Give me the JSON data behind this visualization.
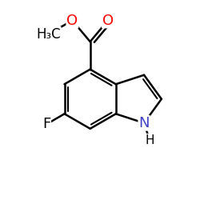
{
  "background_color": "#ffffff",
  "bond_color": "#000000",
  "atom_colors": {
    "O": "#ff0000",
    "N": "#4040cc",
    "F": "#000000",
    "H": "#000000",
    "C": "#000000"
  },
  "font_size_atoms": 13,
  "font_size_h3c": 12,
  "figsize": [
    2.5,
    2.5
  ],
  "dpi": 100
}
